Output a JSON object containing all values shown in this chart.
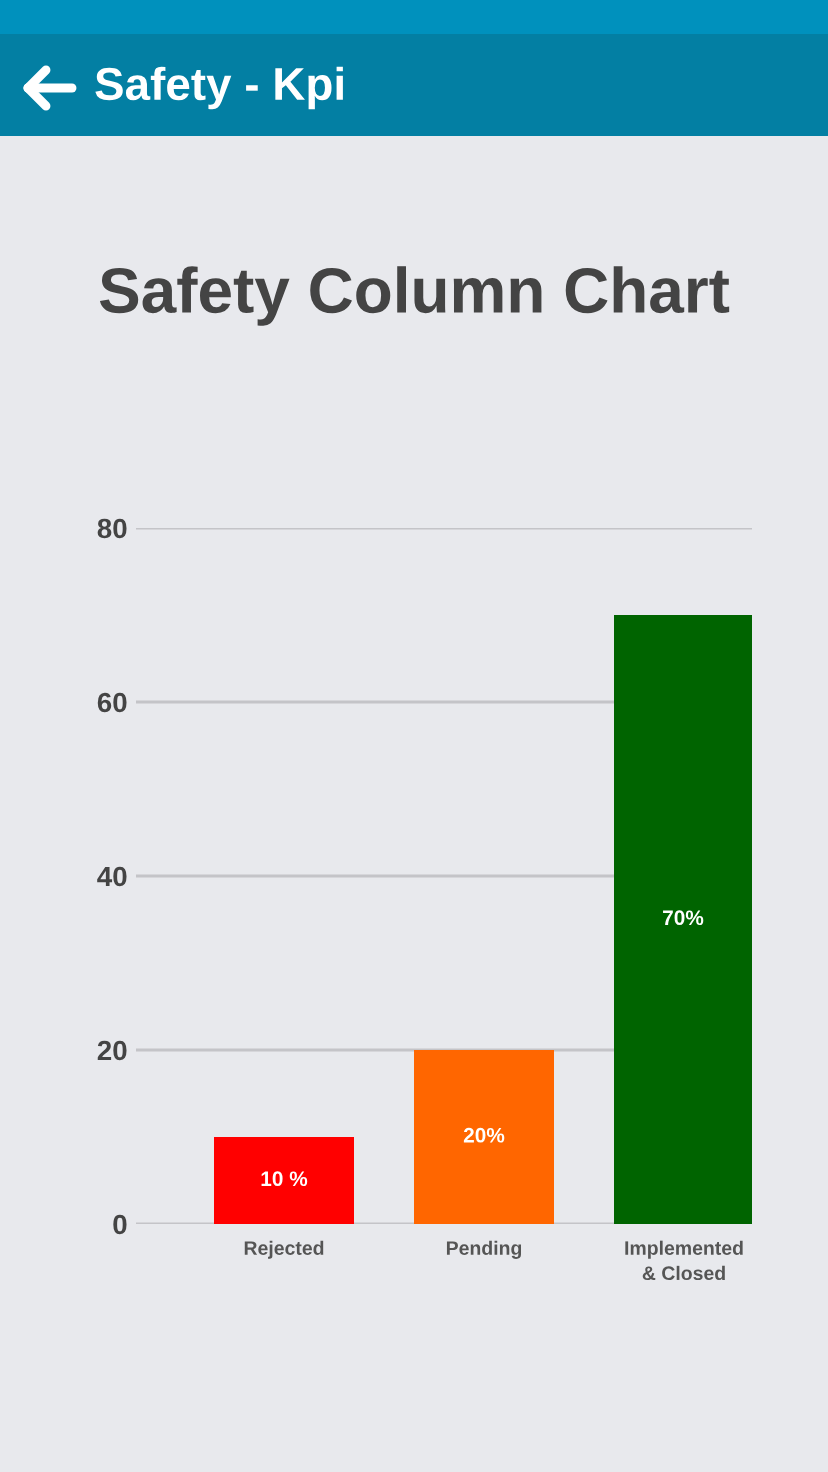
{
  "chart_data": {
    "type": "bar",
    "title": "Safety Column Chart",
    "annotations": [
      "Safety - Kpi"
    ],
    "categories": [
      "Rejected",
      "Pending",
      "Implemented\n& Closed"
    ],
    "values": [
      10,
      20,
      70
    ],
    "colors": [
      "#ff0000",
      "#ff6600",
      "#006400"
    ],
    "value_labels": [
      "10 %",
      "20%",
      "70%"
    ],
    "ylim": [
      0,
      80
    ],
    "yticks": [
      0,
      20,
      40,
      60,
      80
    ],
    "grid": "y",
    "legend": false
  }
}
